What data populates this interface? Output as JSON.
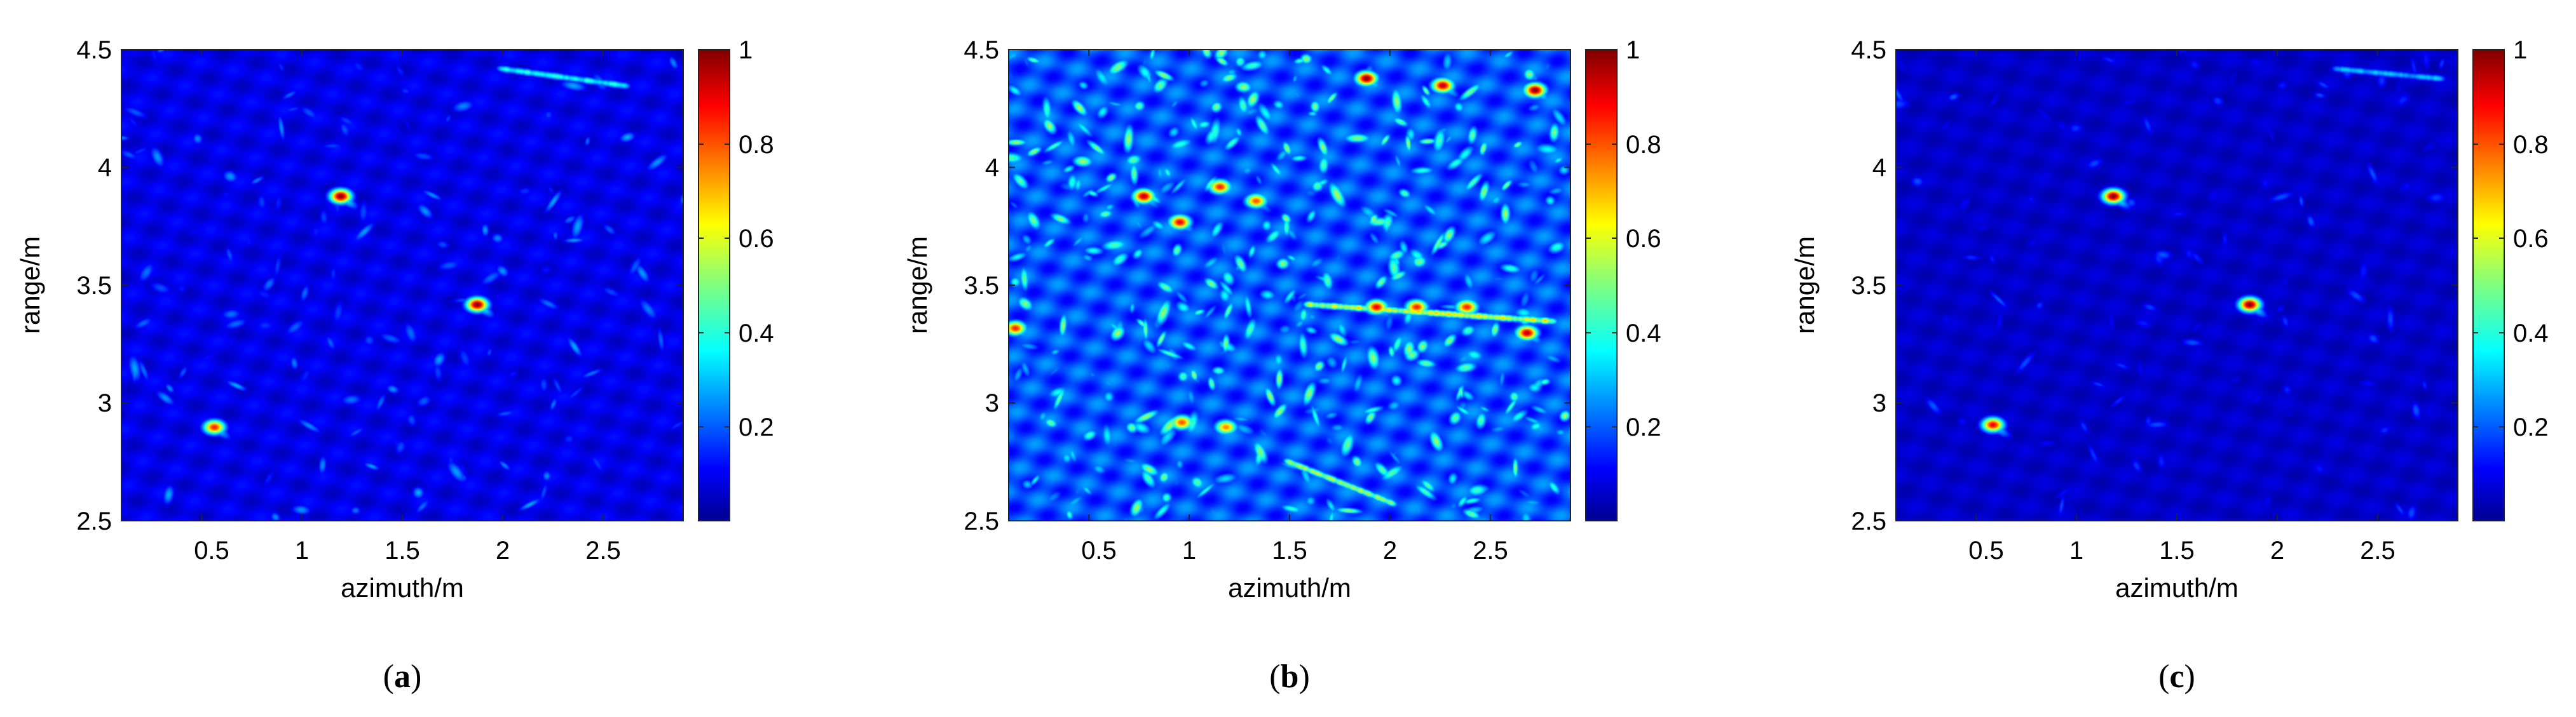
{
  "figure": {
    "panels": [
      {
        "caption_letter": "a",
        "xlabel": "azimuth/m",
        "ylabel": "range/m",
        "xticks": [
          "0.5",
          "1",
          "1.5",
          "2",
          "2.5"
        ],
        "yticks": [
          "2.5",
          "3",
          "3.5",
          "4",
          "4.5"
        ],
        "colorbar_ticks": [
          "0.2",
          "0.4",
          "0.6",
          "0.8",
          "1"
        ]
      },
      {
        "caption_letter": "b",
        "xlabel": "azimuth/m",
        "ylabel": "range/m",
        "xticks": [
          "0.5",
          "1",
          "1.5",
          "2",
          "2.5"
        ],
        "yticks": [
          "2.5",
          "3",
          "3.5",
          "4",
          "4.5"
        ],
        "colorbar_ticks": [
          "0.2",
          "0.4",
          "0.6",
          "0.8",
          "1"
        ]
      },
      {
        "caption_letter": "c",
        "xlabel": "azimuth/m",
        "ylabel": "range/m",
        "xticks": [
          "0.5",
          "1",
          "1.5",
          "2",
          "2.5"
        ],
        "yticks": [
          "2.5",
          "3",
          "3.5",
          "4",
          "4.5"
        ],
        "colorbar_ticks": [
          "0.2",
          "0.4",
          "0.6",
          "0.8",
          "1"
        ]
      }
    ]
  },
  "chart_data": [
    {
      "type": "heatmap",
      "title": "(a)",
      "xlabel": "azimuth/m",
      "ylabel": "range/m",
      "xlim": [
        0.1,
        2.9
      ],
      "ylim": [
        2.5,
        4.5
      ],
      "clim": [
        0,
        1
      ],
      "colormap": "jet",
      "background_level": 0.1,
      "clutter_level": 0.3,
      "clutter_count": 140,
      "seed": 11,
      "streaks": [
        {
          "x1": 2.0,
          "y1": 4.42,
          "x2": 2.6,
          "y2": 4.35,
          "level": 0.45
        }
      ],
      "targets": [
        {
          "x": 1.19,
          "y": 3.88,
          "value": 1.0
        },
        {
          "x": 1.87,
          "y": 3.42,
          "value": 1.0
        },
        {
          "x": 0.56,
          "y": 2.9,
          "value": 0.85
        }
      ]
    },
    {
      "type": "heatmap",
      "title": "(b)",
      "xlabel": "azimuth/m",
      "ylabel": "range/m",
      "xlim": [
        0.1,
        2.9
      ],
      "ylim": [
        2.5,
        4.5
      ],
      "clim": [
        0,
        1
      ],
      "colormap": "jet",
      "background_level": 0.2,
      "clutter_level": 0.55,
      "clutter_count": 420,
      "seed": 29,
      "streaks": [
        {
          "x1": 1.5,
          "y1": 2.75,
          "x2": 2.0,
          "y2": 2.58,
          "level": 0.6
        },
        {
          "x1": 1.6,
          "y1": 3.42,
          "x2": 2.8,
          "y2": 3.35,
          "level": 0.7
        }
      ],
      "targets": [
        {
          "x": 1.88,
          "y": 4.38,
          "value": 1.0
        },
        {
          "x": 2.26,
          "y": 4.35,
          "value": 0.95
        },
        {
          "x": 2.72,
          "y": 4.33,
          "value": 1.0
        },
        {
          "x": 0.77,
          "y": 3.88,
          "value": 0.95
        },
        {
          "x": 0.95,
          "y": 3.77,
          "value": 0.9
        },
        {
          "x": 1.15,
          "y": 3.92,
          "value": 0.85
        },
        {
          "x": 1.33,
          "y": 3.86,
          "value": 0.8
        },
        {
          "x": 1.93,
          "y": 3.41,
          "value": 0.9
        },
        {
          "x": 2.13,
          "y": 3.41,
          "value": 0.85
        },
        {
          "x": 2.38,
          "y": 3.41,
          "value": 0.85
        },
        {
          "x": 2.68,
          "y": 3.3,
          "value": 0.95
        },
        {
          "x": 0.96,
          "y": 2.92,
          "value": 0.8
        },
        {
          "x": 1.18,
          "y": 2.9,
          "value": 0.75
        },
        {
          "x": 0.13,
          "y": 3.32,
          "value": 0.85
        }
      ]
    },
    {
      "type": "heatmap",
      "title": "(c)",
      "xlabel": "azimuth/m",
      "ylabel": "range/m",
      "xlim": [
        0.1,
        2.9
      ],
      "ylim": [
        2.5,
        4.5
      ],
      "clim": [
        0,
        1
      ],
      "colormap": "jet",
      "background_level": 0.07,
      "clutter_level": 0.22,
      "clutter_count": 100,
      "seed": 47,
      "streaks": [
        {
          "x1": 2.3,
          "y1": 4.42,
          "x2": 2.8,
          "y2": 4.38,
          "level": 0.35
        }
      ],
      "targets": [
        {
          "x": 1.18,
          "y": 3.88,
          "value": 1.0
        },
        {
          "x": 1.86,
          "y": 3.42,
          "value": 1.0
        },
        {
          "x": 0.58,
          "y": 2.91,
          "value": 0.9
        }
      ]
    }
  ]
}
